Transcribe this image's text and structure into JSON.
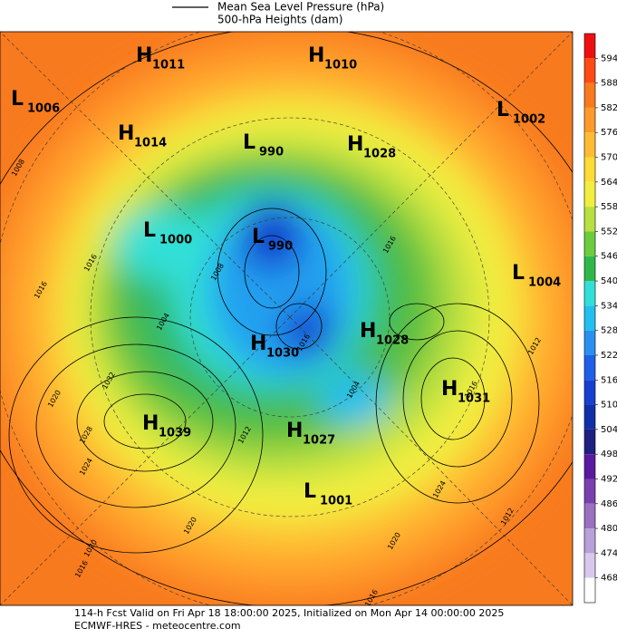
{
  "header": {
    "legend_line_1": "Mean Sea Level Pressure (hPa)",
    "legend_line_2": "500-hPa Heights (dam)"
  },
  "centers": [
    {
      "kind": "H",
      "value": "1011"
    },
    {
      "kind": "H",
      "value": "1010"
    },
    {
      "kind": "L",
      "value": "1006"
    },
    {
      "kind": "L",
      "value": "1002"
    },
    {
      "kind": "H",
      "value": "1014"
    },
    {
      "kind": "L",
      "value": "990"
    },
    {
      "kind": "H",
      "value": "1028"
    },
    {
      "kind": "L",
      "value": "1000"
    },
    {
      "kind": "L",
      "value": "990"
    },
    {
      "kind": "L",
      "value": "1004"
    },
    {
      "kind": "H",
      "value": "1028"
    },
    {
      "kind": "H",
      "value": "1030"
    },
    {
      "kind": "H",
      "value": "1031"
    },
    {
      "kind": "H",
      "value": "1039"
    },
    {
      "kind": "H",
      "value": "1027"
    },
    {
      "kind": "L",
      "value": "1001"
    }
  ],
  "contour_labels": [
    "1008",
    "1016",
    "1016",
    "1020",
    "1032",
    "1028",
    "1024",
    "1020",
    "1016",
    "1016",
    "1012",
    "1024",
    "1020",
    "1016",
    "1020",
    "1012",
    "1016",
    "1008",
    "1004",
    "1012",
    "1016",
    "1004"
  ],
  "colorbar": {
    "ticks": [
      594,
      588,
      582,
      576,
      570,
      564,
      558,
      552,
      546,
      540,
      534,
      528,
      522,
      516,
      510,
      504,
      498,
      492,
      486,
      480,
      474,
      468
    ],
    "colors": [
      "#ee1010",
      "#ff4a14",
      "#f87a1e",
      "#ff9a2a",
      "#ffbb33",
      "#ffdb35",
      "#f2ee40",
      "#b8e040",
      "#6ccc3c",
      "#2fb84a",
      "#30e0d8",
      "#22c0f0",
      "#2a90f0",
      "#2060e8",
      "#1840d0",
      "#1030a8",
      "#202080",
      "#5a1aa0",
      "#7a40b0",
      "#9a70c0",
      "#b8a0d8",
      "#d8c8ec",
      "#ffffff"
    ]
  },
  "footer": {
    "line_1": "114-h Fcst Valid on Fri Apr 18 18:00:00 2025, Initialized on Mon Apr 14 00:00:00 2025",
    "line_2": "ECMWF-HRES - meteocentre.com"
  }
}
